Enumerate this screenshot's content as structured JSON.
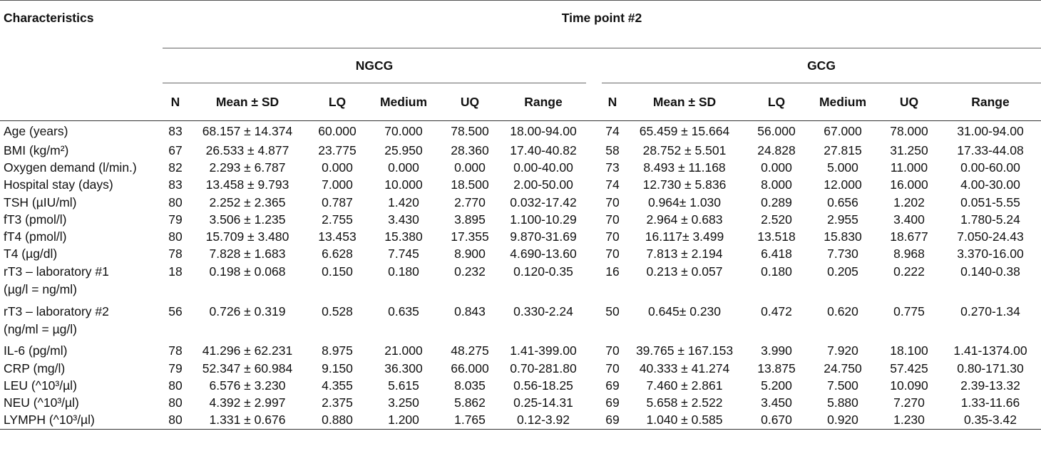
{
  "header": {
    "characteristics": "Characteristics",
    "time_point": "Time point #2",
    "group1": "NGCG",
    "group2": "GCG",
    "columns": [
      "N",
      "Mean ± SD",
      "LQ",
      "Medium",
      "UQ",
      "Range"
    ]
  },
  "rows": [
    {
      "label": "Age (years)",
      "g1": [
        "83",
        "68.157 ± 14.374",
        "60.000",
        "70.000",
        "78.500",
        "18.00-94.00"
      ],
      "g2": [
        "74",
        "65.459 ± 15.664",
        "56.000",
        "67.000",
        "78.000",
        "31.00-94.00"
      ]
    },
    {
      "label": "BMI (kg/m²)",
      "g1": [
        "67",
        "26.533 ± 4.877",
        "23.775",
        "25.950",
        "28.360",
        "17.40-40.82"
      ],
      "g2": [
        "58",
        "28.752 ± 5.501",
        "24.828",
        "27.815",
        "31.250",
        "17.33-44.08"
      ]
    },
    {
      "label": "Oxygen demand (l/min.)",
      "g1": [
        "82",
        "2.293 ± 6.787",
        "0.000",
        "0.000",
        "0.000",
        "0.00-40.00"
      ],
      "g2": [
        "73",
        "8.493 ± 11.168",
        "0.000",
        "5.000",
        "11.000",
        "0.00-60.00"
      ]
    },
    {
      "label": "Hospital stay (days)",
      "g1": [
        "83",
        "13.458 ± 9.793",
        "7.000",
        "10.000",
        "18.500",
        "2.00-50.00"
      ],
      "g2": [
        "74",
        "12.730 ± 5.836",
        "8.000",
        "12.000",
        "16.000",
        "4.00-30.00"
      ]
    },
    {
      "label": "TSH (µIU/ml)",
      "g1": [
        "80",
        "2.252 ± 2.365",
        "0.787",
        "1.420",
        "2.770",
        "0.032-17.42"
      ],
      "g2": [
        "70",
        "0.964± 1.030",
        "0.289",
        "0.656",
        "1.202",
        "0.051-5.55"
      ]
    },
    {
      "label": "fT3 (pmol/l)",
      "g1": [
        "79",
        "3.506 ± 1.235",
        "2.755",
        "3.430",
        "3.895",
        "1.100-10.29"
      ],
      "g2": [
        "70",
        "2.964 ± 0.683",
        "2.520",
        "2.955",
        "3.400",
        "1.780-5.24"
      ]
    },
    {
      "label": "fT4 (pmol/l)",
      "g1": [
        "80",
        "15.709 ± 3.480",
        "13.453",
        "15.380",
        "17.355",
        "9.870-31.69"
      ],
      "g2": [
        "70",
        "16.117± 3.499",
        "13.518",
        "15.830",
        "18.677",
        "7.050-24.43"
      ]
    },
    {
      "label": "T4 (µg/dl)",
      "g1": [
        "78",
        "7.828 ± 1.683",
        "6.628",
        "7.745",
        "8.900",
        "4.690-13.60"
      ],
      "g2": [
        "70",
        "7.813 ± 2.194",
        "6.418",
        "7.730",
        "8.968",
        "3.370-16.00"
      ]
    },
    {
      "label": "rT3 – laboratory #1",
      "label2": "(µg/l = ng/ml)",
      "g1": [
        "18",
        "0.198 ± 0.068",
        "0.150",
        "0.180",
        "0.232",
        "0.120-0.35"
      ],
      "g2": [
        "16",
        "0.213 ± 0.057",
        "0.180",
        "0.205",
        "0.222",
        "0.140-0.38"
      ]
    },
    {
      "label": "rT3 – laboratory #2",
      "label2": "(ng/ml = µg/l)",
      "g1": [
        "56",
        "0.726 ± 0.319",
        "0.528",
        "0.635",
        "0.843",
        "0.330-2.24"
      ],
      "g2": [
        "50",
        "0.645± 0.230",
        "0.472",
        "0.620",
        "0.775",
        "0.270-1.34"
      ]
    },
    {
      "label": "IL-6 (pg/ml)",
      "g1": [
        "78",
        "41.296 ± 62.231",
        "8.975",
        "21.000",
        "48.275",
        "1.41-399.00"
      ],
      "g2": [
        "70",
        "39.765 ± 167.153",
        "3.990",
        "7.920",
        "18.100",
        "1.41-1374.00"
      ]
    },
    {
      "label": "CRP (mg/l)",
      "g1": [
        "79",
        "52.347 ± 60.984",
        "9.150",
        "36.300",
        "66.000",
        "0.70-281.80"
      ],
      "g2": [
        "70",
        "40.333 ± 41.274",
        "13.875",
        "24.750",
        "57.425",
        "0.80-171.30"
      ]
    },
    {
      "label": "LEU (^10³/µl)",
      "g1": [
        "80",
        "6.576 ± 3.230",
        "4.355",
        "5.615",
        "8.035",
        "0.56-18.25"
      ],
      "g2": [
        "69",
        "7.460 ± 2.861",
        "5.200",
        "7.500",
        "10.090",
        "2.39-13.32"
      ]
    },
    {
      "label": "NEU (^10³/µl)",
      "g1": [
        "80",
        "4.392 ± 2.997",
        "2.375",
        "3.250",
        "5.862",
        "0.25-14.31"
      ],
      "g2": [
        "69",
        "5.658 ± 2.522",
        "3.450",
        "5.880",
        "7.270",
        "1.33-11.66"
      ]
    },
    {
      "label": "LYMPH (^10³/µl)",
      "g1": [
        "80",
        "1.331 ± 0.676",
        "0.880",
        "1.200",
        "1.765",
        "0.12-3.92"
      ],
      "g2": [
        "69",
        "1.040 ± 0.585",
        "0.670",
        "0.920",
        "1.230",
        "0.35-3.42"
      ]
    }
  ]
}
